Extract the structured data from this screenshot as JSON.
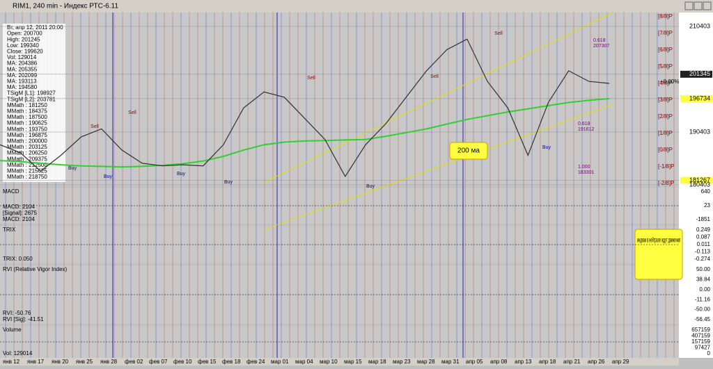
{
  "window": {
    "title": "RIM1, 240 min - Индекс РТС-6.11"
  },
  "info": [
    "Вт, апр 12, 2011 20:00",
    "Open: 200700",
    "High: 201245",
    "Low: 199340",
    "Close: 199620",
    "Vol: 129014",
    "MA: 204386",
    "MA: 205355",
    "MA: 202099",
    "MA: 193113",
    "MA: 194580",
    "TSigM [L1]: 198927",
    "TSigM [L2]: 203781",
    "MMath : 181250",
    "MMath : 184375",
    "MMath : 187500",
    "MMath : 190625",
    "MMath : 193750",
    "MMath : 196875",
    "MMath : 200000",
    "MMath : 203125",
    "MMath : 206250",
    "MMath : 209375",
    "MMath : 212500",
    "MMath : 215625",
    "MMath : 218750"
  ],
  "price": {
    "ylim": [
      180140,
      213035
    ],
    "axis": [
      "210403",
      "201345",
      "196734",
      "190403",
      "181267",
      "180403"
    ],
    "axis_values": [
      210403,
      201345,
      196734,
      190403,
      181267,
      180403
    ],
    "closes": [
      188000,
      186500,
      183000,
      186000,
      189500,
      191000,
      187000,
      184500,
      184000,
      184200,
      184000,
      188000,
      195000,
      198000,
      197000,
      193000,
      189000,
      182000,
      188000,
      192000,
      197000,
      202000,
      206000,
      208000,
      200000,
      195000,
      186000,
      196000,
      202000,
      200000,
      199620
    ],
    "ma200": [
      185000,
      184800,
      184500,
      184200,
      184000,
      183900,
      183800,
      183900,
      184100,
      184400,
      184900,
      185800,
      187000,
      188000,
      188500,
      188700,
      188800,
      188900,
      189000,
      189600,
      190300,
      191000,
      191900,
      192800,
      193500,
      194200,
      194800,
      195400,
      196000,
      196400,
      196734
    ]
  },
  "murray": [
    "[8/8]P",
    "[7/8]P",
    "[6/8]P",
    "[5/8]P",
    "[4/8]P",
    "[3/8]P",
    "[2/8]P",
    "[1/8]P",
    "[0/8]P",
    "[-1/8]P",
    "[-2/8]P"
  ],
  "dates": [
    "янв 12",
    "янв 17",
    "янв 20",
    "янв 25",
    "янв 28",
    "фев 02",
    "фев 07",
    "фев 10",
    "фев 15",
    "фев 18",
    "фев 24",
    "мар 01",
    "мар 04",
    "мар 10",
    "мар 15",
    "мар 18",
    "мар 23",
    "мар 28",
    "мар 31",
    "апр 05",
    "апр 08",
    "апр 13",
    "апр 18",
    "апр 21",
    "апр 26",
    "апр 29"
  ],
  "signals": [
    "Buy",
    "Buy",
    "Buy",
    "Buy",
    "Buy",
    "Buy",
    "Sell",
    "Sell",
    "Sell",
    "Sell",
    "Sell"
  ],
  "fib": [
    "0.618",
    "207307",
    "0.618",
    "191612",
    "1.000",
    "183301"
  ],
  "annotations": {
    "pct": "+0.00%",
    "ma": "200 ма",
    "indicators": "индюки в нейтрале ждут движения"
  },
  "macd": {
    "legend": [
      "MACD",
      "MACD: 2104",
      "[Signal]: 2675",
      "MACD: 2104"
    ],
    "axis": [
      "640",
      "23",
      "-1851"
    ]
  },
  "trix": {
    "legend": [
      "TRIX",
      "TRIX: 0.050"
    ],
    "axis": [
      "0.249",
      "0.087",
      "0.011",
      "-0.113",
      "-0.274"
    ]
  },
  "rvi": {
    "legend": [
      "RVI (Relative Vigor Index)",
      "RVI: -50.76",
      "RVI [Sig]: -41.51"
    ],
    "axis": [
      "50.00",
      "38.84",
      "0.00",
      "-11.16",
      "-50.00",
      "-56.45"
    ]
  },
  "volume": {
    "legend": [
      "Volume",
      "Vol: 129014"
    ],
    "axis": [
      "657159",
      "407159",
      "157159",
      "97427",
      "0"
    ]
  }
}
